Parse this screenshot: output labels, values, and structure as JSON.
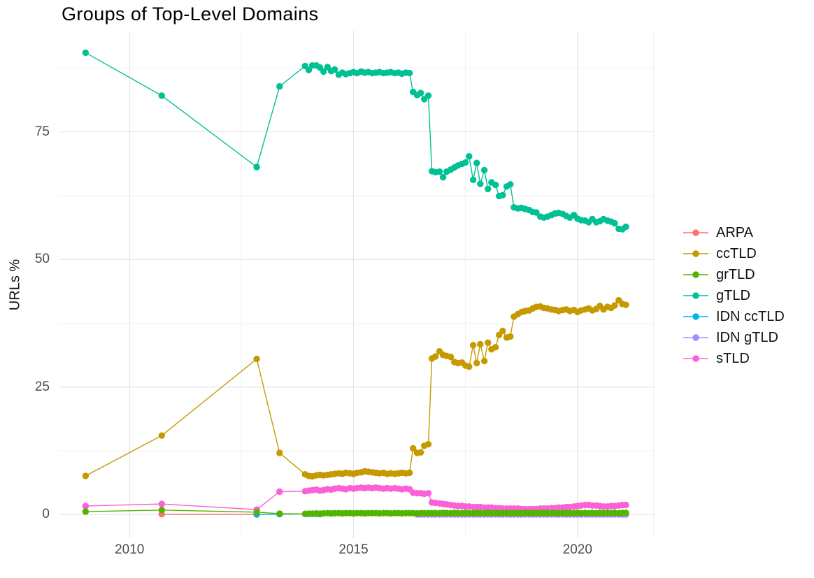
{
  "chart_data": {
    "type": "line",
    "title": "Groups of Top-Level Domains",
    "ylabel": "URLs %",
    "legend_position": "right",
    "grid": "on",
    "xlim": [
      2008.42,
      2021.72
    ],
    "ylim": [
      -4.6,
      94.8
    ],
    "x_ticks": [
      [
        2010,
        "2010"
      ],
      [
        2015,
        "2015"
      ],
      [
        2020,
        "2020"
      ]
    ],
    "x_minor": [
      2012.5,
      2017.5,
      2021.7
    ],
    "y_ticks": [
      [
        0,
        "0"
      ],
      [
        25,
        "25"
      ],
      [
        50,
        "50"
      ],
      [
        75,
        "75"
      ]
    ],
    "y_minor": [
      12.5,
      37.5,
      62.5,
      87.5
    ],
    "x_monthly": [
      2013.92,
      2014.0,
      2014.08,
      2014.17,
      2014.25,
      2014.33,
      2014.42,
      2014.5,
      2014.58,
      2014.67,
      2014.75,
      2014.83,
      2014.92,
      2015.0,
      2015.08,
      2015.17,
      2015.25,
      2015.33,
      2015.42,
      2015.5,
      2015.58,
      2015.67,
      2015.75,
      2015.83,
      2015.92,
      2016.0,
      2016.08,
      2016.17,
      2016.25,
      2016.33,
      2016.42,
      2016.5,
      2016.58,
      2016.67,
      2016.75,
      2016.83,
      2016.92,
      2017.0,
      2017.08,
      2017.17,
      2017.25,
      2017.33,
      2017.42,
      2017.5,
      2017.58,
      2017.67,
      2017.75,
      2017.83,
      2017.92,
      2018.0,
      2018.08,
      2018.17,
      2018.25,
      2018.33,
      2018.42,
      2018.5,
      2018.58,
      2018.67,
      2018.75,
      2018.83,
      2018.92,
      2019.0,
      2019.08,
      2019.17,
      2019.25,
      2019.33,
      2019.42,
      2019.5,
      2019.58,
      2019.67,
      2019.75,
      2019.83,
      2019.92,
      2020.0,
      2020.08,
      2020.17,
      2020.25,
      2020.33,
      2020.42,
      2020.5,
      2020.58,
      2020.67,
      2020.75,
      2020.83,
      2020.92,
      2021.0,
      2021.08
    ],
    "series": [
      {
        "name": "ARPA",
        "color": "#F8766D",
        "early": [
          [
            2010.72,
            0.1
          ],
          [
            2012.84,
            0.05
          ]
        ],
        "monthly": null
      },
      {
        "name": "ccTLD",
        "color": "#C49A00",
        "early": [
          [
            2009.02,
            7.6
          ],
          [
            2010.72,
            15.5
          ],
          [
            2012.84,
            30.5
          ],
          [
            2013.35,
            12.1
          ]
        ],
        "monthly": [
          7.9,
          7.6,
          7.5,
          7.7,
          7.8,
          7.7,
          7.8,
          7.9,
          8.0,
          8.1,
          8.0,
          8.2,
          8.1,
          8.0,
          8.2,
          8.3,
          8.5,
          8.4,
          8.3,
          8.2,
          8.1,
          8.2,
          8.0,
          8.1,
          8.0,
          8.1,
          8.2,
          8.1,
          8.2,
          13.0,
          12.1,
          12.2,
          13.5,
          13.8,
          30.6,
          31.0,
          32.0,
          31.3,
          31.1,
          30.9,
          29.9,
          29.7,
          29.8,
          29.2,
          29.0,
          33.2,
          29.7,
          33.4,
          30.1,
          33.7,
          32.4,
          32.8,
          35.2,
          36.0,
          34.7,
          34.9,
          38.8,
          39.3,
          39.7,
          39.9,
          40.0,
          40.4,
          40.7,
          40.8,
          40.5,
          40.4,
          40.2,
          40.1,
          39.9,
          40.1,
          40.2,
          39.9,
          40.1,
          39.7,
          40.0,
          40.2,
          40.4,
          40.0,
          40.3,
          40.9,
          40.2,
          40.7,
          40.5,
          41.0,
          42.0,
          41.3,
          41.1
        ]
      },
      {
        "name": "grTLD",
        "color": "#53B400",
        "early": [
          [
            2009.02,
            0.6
          ],
          [
            2010.72,
            0.9
          ],
          [
            2012.84,
            0.5
          ],
          [
            2013.35,
            0.2
          ]
        ],
        "monthly": [
          0.15,
          0.2,
          0.2,
          0.25,
          0.2,
          0.25,
          0.3,
          0.25,
          0.3,
          0.3,
          0.25,
          0.3,
          0.3,
          0.25,
          0.3,
          0.3,
          0.25,
          0.3,
          0.3,
          0.3,
          0.25,
          0.3,
          0.3,
          0.25,
          0.3,
          0.3,
          0.25,
          0.3,
          0.3,
          0.3,
          0.25,
          0.3,
          0.3,
          0.3,
          0.3,
          0.3,
          0.3,
          0.35,
          0.3,
          0.3,
          0.35,
          0.3,
          0.3,
          0.35,
          0.3,
          0.3,
          0.35,
          0.3,
          0.3,
          0.35,
          0.3,
          0.35,
          0.3,
          0.3,
          0.35,
          0.3,
          0.35,
          0.3,
          0.3,
          0.35,
          0.3,
          0.3,
          0.35,
          0.3,
          0.35,
          0.3,
          0.35,
          0.3,
          0.3,
          0.35,
          0.3,
          0.35,
          0.3,
          0.35,
          0.3,
          0.35,
          0.3,
          0.35,
          0.3,
          0.35,
          0.3,
          0.35,
          0.3,
          0.35,
          0.3,
          0.35,
          0.35
        ]
      },
      {
        "name": "gTLD",
        "color": "#00C094",
        "early": [
          [
            2009.02,
            90.5
          ],
          [
            2010.72,
            82.1
          ],
          [
            2012.84,
            68.1
          ],
          [
            2013.35,
            83.9
          ]
        ],
        "monthly": [
          87.9,
          87.1,
          88.0,
          88.0,
          87.6,
          86.8,
          87.7,
          86.9,
          87.2,
          86.2,
          86.6,
          86.3,
          86.5,
          86.7,
          86.5,
          86.8,
          86.6,
          86.7,
          86.5,
          86.6,
          86.7,
          86.5,
          86.6,
          86.7,
          86.5,
          86.6,
          86.4,
          86.6,
          86.5,
          82.8,
          82.2,
          82.6,
          81.4,
          82.1,
          67.3,
          67.1,
          67.2,
          66.1,
          67.2,
          67.6,
          68.0,
          68.4,
          68.7,
          69.0,
          70.2,
          65.6,
          68.9,
          64.8,
          67.5,
          63.8,
          65.1,
          64.6,
          62.4,
          62.6,
          64.3,
          64.7,
          60.2,
          60.0,
          60.1,
          59.9,
          59.7,
          59.3,
          59.2,
          58.4,
          58.2,
          58.4,
          58.7,
          59.0,
          59.1,
          58.9,
          58.5,
          58.2,
          58.7,
          58.0,
          57.7,
          57.6,
          57.3,
          57.9,
          57.3,
          57.5,
          57.9,
          57.6,
          57.4,
          57.1,
          56.0,
          55.9,
          56.4
        ]
      },
      {
        "name": "IDN ccTLD",
        "color": "#00B6EB",
        "early": [
          [
            2012.84,
            0.05
          ],
          [
            2013.35,
            0.1
          ]
        ],
        "monthly": [
          0.15,
          0.15,
          0.15,
          0.15,
          0.12
        ]
      },
      {
        "name": "IDN gTLD",
        "color": "#A58AFF",
        "early": [],
        "monthly": {
          "start": 30,
          "count": 57,
          "value": 0.05
        }
      },
      {
        "name": "sTLD",
        "color": "#FB61D7",
        "early": [
          [
            2009.02,
            1.7
          ],
          [
            2010.72,
            2.1
          ],
          [
            2012.84,
            1.0
          ],
          [
            2013.35,
            4.5
          ]
        ],
        "monthly": [
          4.6,
          4.7,
          4.8,
          4.9,
          4.7,
          4.8,
          5.0,
          4.9,
          5.1,
          5.2,
          5.1,
          5.0,
          5.2,
          5.1,
          5.2,
          5.3,
          5.2,
          5.3,
          5.2,
          5.3,
          5.2,
          5.1,
          5.2,
          5.1,
          5.2,
          5.1,
          5.0,
          5.1,
          5.0,
          4.3,
          4.2,
          4.2,
          4.1,
          4.2,
          2.4,
          2.3,
          2.2,
          2.1,
          2.0,
          1.9,
          1.8,
          1.7,
          1.7,
          1.6,
          1.6,
          1.5,
          1.5,
          1.5,
          1.4,
          1.4,
          1.4,
          1.3,
          1.3,
          1.2,
          1.2,
          1.2,
          1.2,
          1.2,
          1.1,
          1.1,
          1.1,
          1.1,
          1.1,
          1.2,
          1.2,
          1.2,
          1.3,
          1.3,
          1.4,
          1.4,
          1.5,
          1.5,
          1.6,
          1.7,
          1.8,
          1.9,
          1.9,
          1.8,
          1.8,
          1.7,
          1.6,
          1.6,
          1.7,
          1.7,
          1.8,
          1.9,
          1.9
        ]
      }
    ]
  }
}
